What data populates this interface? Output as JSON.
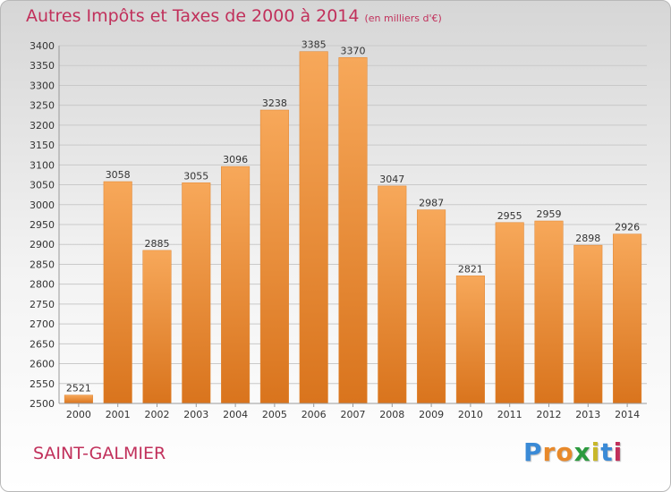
{
  "chart_data": {
    "type": "bar",
    "title": "Autres Impôts et Taxes de 2000 à 2014",
    "subtitle": "(en milliers d'€)",
    "xlabel": "",
    "ylabel": "",
    "categories": [
      "2000",
      "2001",
      "2002",
      "2003",
      "2004",
      "2005",
      "2006",
      "2007",
      "2008",
      "2009",
      "2010",
      "2011",
      "2012",
      "2013",
      "2014"
    ],
    "values": [
      2521,
      3058,
      2885,
      3055,
      3096,
      3238,
      3385,
      3370,
      3047,
      2987,
      2821,
      2955,
      2959,
      2898,
      2926
    ],
    "ylim": [
      2500,
      3400
    ],
    "ytick_step": 50,
    "grid": true,
    "legend": "none",
    "bar_color": "#f0923d"
  },
  "footer": {
    "commune": "SAINT-GALMIER",
    "logo_letters": [
      "P",
      "r",
      "o",
      "x",
      "i",
      "t",
      "i"
    ]
  },
  "colors": {
    "title": "#c1305b",
    "logo": [
      "#3a8ad6",
      "#e8892a",
      "#e8892a",
      "#2b9a3e",
      "#c8b82a",
      "#3a8ad6",
      "#c1305b"
    ]
  }
}
